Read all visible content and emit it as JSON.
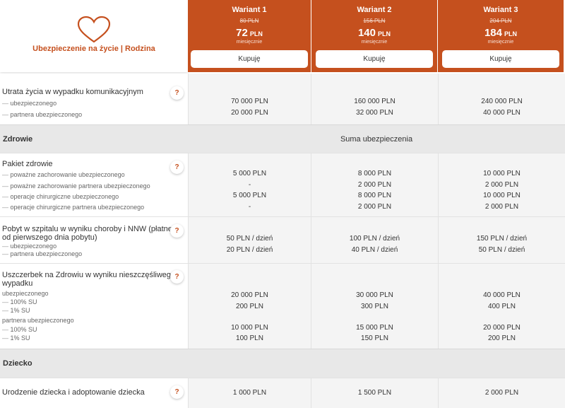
{
  "brand": {
    "title": "Ubezpieczenie na życie | Rodzina",
    "icon": "heart-icon",
    "accent": "#c5501e"
  },
  "variants": [
    {
      "name": "Wariant 1",
      "old_price": "80 PLN",
      "price": "72",
      "currency": "PLN",
      "period": "miesięcznie",
      "buy": "Kupuję"
    },
    {
      "name": "Wariant 2",
      "old_price": "156 PLN",
      "price": "140",
      "currency": "PLN",
      "period": "miesięcznie",
      "buy": "Kupuję"
    },
    {
      "name": "Wariant 3",
      "old_price": "204 PLN",
      "price": "184",
      "currency": "PLN",
      "period": "miesięcznie",
      "buy": "Kupuję"
    }
  ],
  "help_label": "?",
  "rows": {
    "accident": {
      "title": "Utrata życia w wypadku komunikacyjnym",
      "subs": [
        "ubezpieczonego",
        "partnera ubezpieczonego"
      ],
      "values": [
        [
          "70 000 PLN",
          "20 000 PLN"
        ],
        [
          "160 000 PLN",
          "32 000 PLN"
        ],
        [
          "240 000 PLN",
          "40 000 PLN"
        ]
      ]
    },
    "health_pack": {
      "title": "Pakiet zdrowie",
      "subs": [
        "poważne zachorowanie ubezpieczonego",
        "poważne zachorowanie partnera ubezpieczonego",
        "operacje chirurgiczne ubezpieczonego",
        "operacje chirurgiczne partnera ubezpieczonego"
      ],
      "values": [
        [
          "5 000 PLN",
          "-",
          "5 000 PLN",
          "-"
        ],
        [
          "8 000 PLN",
          "2 000 PLN",
          "8 000 PLN",
          "2 000 PLN"
        ],
        [
          "10 000 PLN",
          "2 000 PLN",
          "10 000 PLN",
          "2 000 PLN"
        ]
      ]
    },
    "hospital": {
      "title_line1": "Pobyt w szpitalu w wyniku choroby i NNW (płatne",
      "title_line2": "od pierwszego dnia pobytu)",
      "subs": [
        "ubezpieczonego",
        "partnera ubezpieczonego"
      ],
      "values": [
        [
          "50 PLN / dzień",
          "20 PLN / dzień"
        ],
        [
          "100 PLN / dzień",
          "40 PLN / dzień"
        ],
        [
          "150 PLN / dzień",
          "50 PLN / dzień"
        ]
      ]
    },
    "injury": {
      "title_line1": "Uszczerbek na Zdrowiu w wyniku nieszczęśliwego",
      "title_line2": "wypadku",
      "group1": "ubezpieczonego",
      "group1_subs": [
        "100% SU",
        "1% SU"
      ],
      "group2": "partnera ubezpieczonego",
      "group2_subs": [
        "100% SU",
        "1% SU"
      ],
      "values": [
        [
          "20 000 PLN",
          "200 PLN",
          "10 000 PLN",
          "100 PLN"
        ],
        [
          "30 000 PLN",
          "300 PLN",
          "15 000 PLN",
          "150 PLN"
        ],
        [
          "40 000 PLN",
          "400 PLN",
          "20 000 PLN",
          "200 PLN"
        ]
      ]
    },
    "birth": {
      "title": "Urodzenie dziecka i adoptowanie dziecka",
      "values": [
        "1 000 PLN",
        "1 500 PLN",
        "2 000 PLN"
      ]
    }
  },
  "sections": {
    "health": {
      "title": "Zdrowie",
      "center": "Suma ubezpieczenia"
    },
    "child": {
      "title": "Dziecko"
    }
  }
}
